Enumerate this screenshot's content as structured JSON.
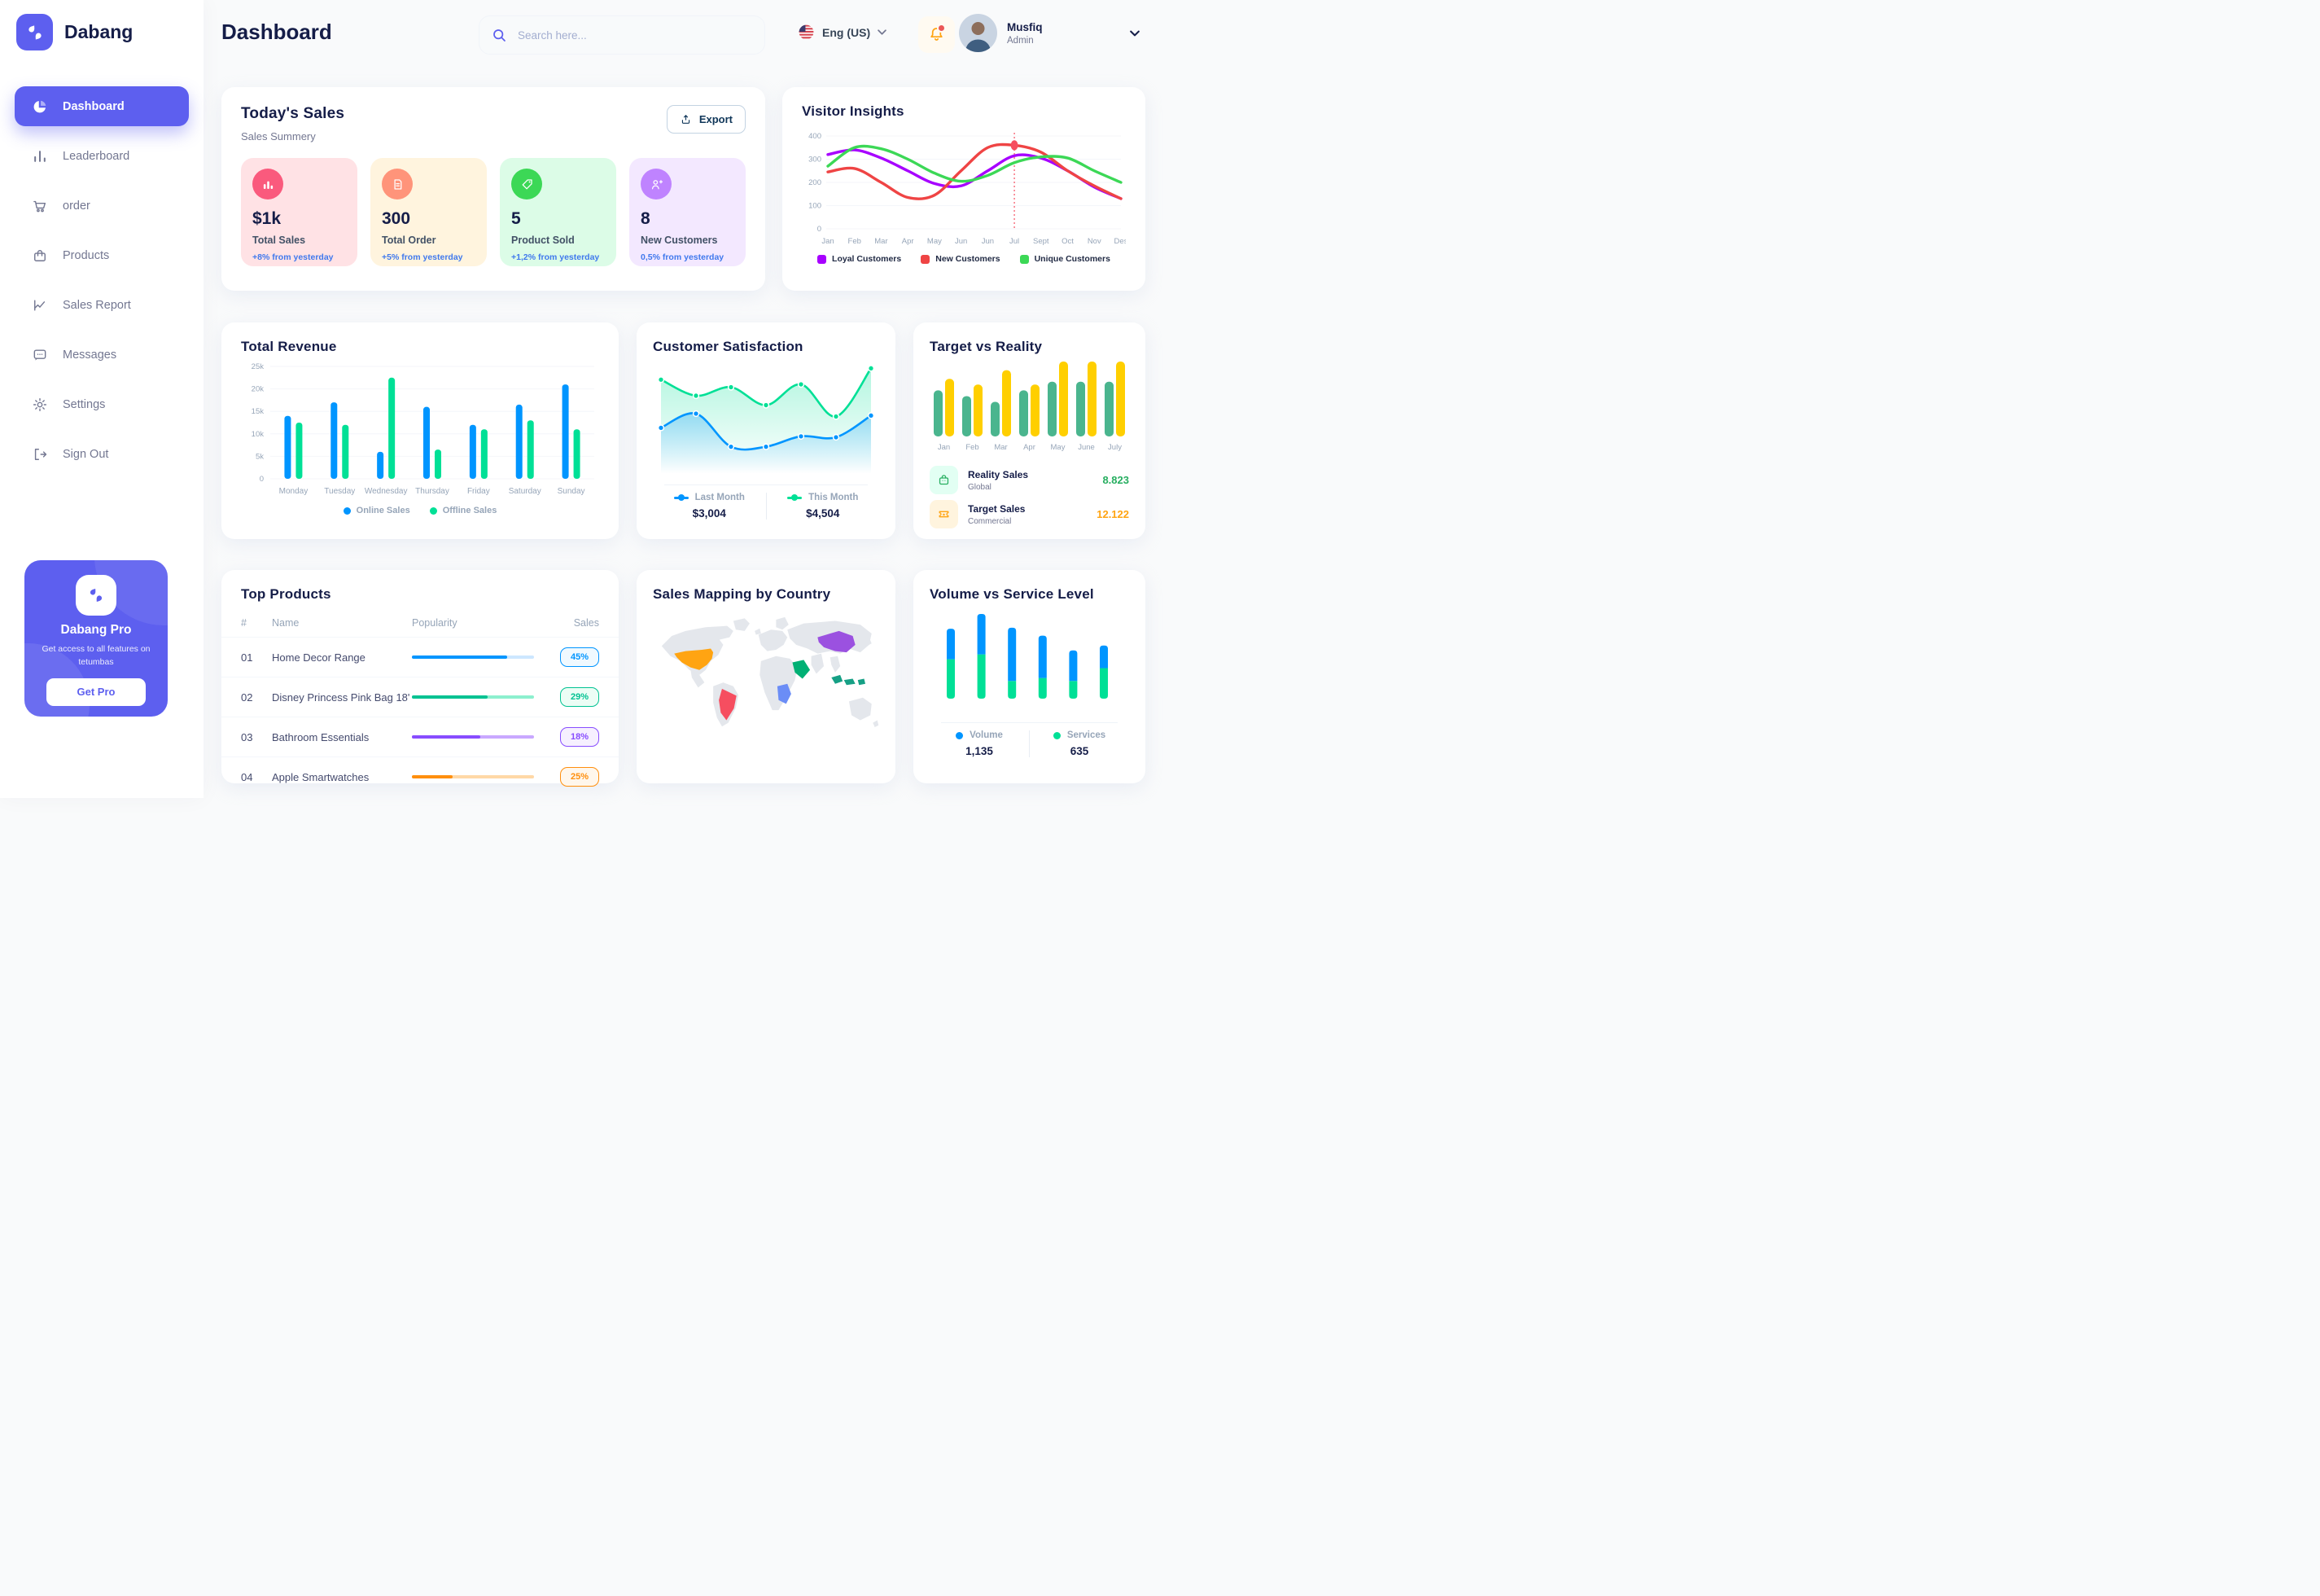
{
  "brand": {
    "name": "Dabang",
    "accent": "#5D5FEF"
  },
  "page": {
    "title": "Dashboard"
  },
  "header": {
    "search": {
      "placeholder": "Search here..."
    },
    "language": {
      "label": "Eng (US)"
    },
    "user": {
      "name": "Musfiq",
      "role": "Admin"
    }
  },
  "sidebar": {
    "items": [
      {
        "label": "Dashboard",
        "icon": "pie-chart-icon",
        "active": true
      },
      {
        "label": "Leaderboard",
        "icon": "bar-chart-icon",
        "active": false
      },
      {
        "label": "order",
        "icon": "cart-icon",
        "active": false
      },
      {
        "label": "Products",
        "icon": "bag-icon",
        "active": false
      },
      {
        "label": "Sales Report",
        "icon": "line-chart-icon",
        "active": false
      },
      {
        "label": "Messages",
        "icon": "message-icon",
        "active": false
      },
      {
        "label": "Settings",
        "icon": "gear-icon",
        "active": false
      },
      {
        "label": "Sign Out",
        "icon": "sign-out-icon",
        "active": false
      }
    ],
    "pro_card": {
      "title": "Dabang Pro",
      "subtitle": "Get access to all features on tetumbas",
      "cta": "Get Pro"
    }
  },
  "today_sales": {
    "title": "Today's Sales",
    "subtitle": "Sales Summery",
    "export_label": "Export",
    "delta_color": "#4079ED",
    "cards": [
      {
        "value": "$1k",
        "label": "Total Sales",
        "delta": "+8% from yesterday",
        "bg": "#FFE2E5",
        "icon_bg": "#FA5A7D",
        "icon": "chart-bars-icon"
      },
      {
        "value": "300",
        "label": "Total Order",
        "delta": "+5% from yesterday",
        "bg": "#FFF4DE",
        "icon_bg": "#FF947A",
        "icon": "order-doc-icon"
      },
      {
        "value": "5",
        "label": "Product Sold",
        "delta": "+1,2% from yesterday",
        "bg": "#DCFCE7",
        "icon_bg": "#3CD856",
        "icon": "tag-icon"
      },
      {
        "value": "8",
        "label": "New Customers",
        "delta": "0,5% from yesterday",
        "bg": "#F3E8FF",
        "icon_bg": "#BF83FF",
        "icon": "new-customer-icon"
      }
    ]
  },
  "chart_data": [
    {
      "id": "visitor_insights",
      "type": "line",
      "title": "Visitor Insights",
      "x": [
        "Jan",
        "Feb",
        "Mar",
        "Apr",
        "May",
        "Jun",
        "Jun",
        "Jul",
        "Sept",
        "Oct",
        "Nov",
        "Des"
      ],
      "ylim": [
        0,
        400
      ],
      "yticks": [
        "400",
        "300",
        "200",
        "100",
        "0"
      ],
      "grid": true,
      "legend_position": "bottom",
      "series": [
        {
          "name": "Loyal Customers",
          "color": "#A700FF",
          "values": [
            320,
            340,
            305,
            250,
            195,
            185,
            250,
            315,
            305,
            250,
            180,
            130
          ]
        },
        {
          "name": "New Customers",
          "color": "#EF4444",
          "values": [
            245,
            260,
            200,
            135,
            145,
            250,
            350,
            360,
            330,
            250,
            185,
            130
          ]
        },
        {
          "name": "Unique Customers",
          "color": "#3CD856",
          "values": [
            270,
            350,
            345,
            300,
            240,
            205,
            230,
            285,
            310,
            305,
            250,
            200
          ]
        }
      ],
      "marker": {
        "series": "New Customers",
        "x_index": 7,
        "x_label": "Jul",
        "color": "#F64E60"
      }
    },
    {
      "id": "total_revenue",
      "type": "bar",
      "title": "Total Revenue",
      "categories": [
        "Monday",
        "Tuesday",
        "Wednesday",
        "Thursday",
        "Friday",
        "Saturday",
        "Sunday"
      ],
      "ylabel_unit": "k",
      "ylim": [
        0,
        25
      ],
      "yticks": [
        "25k",
        "20k",
        "15k",
        "10k",
        "5k",
        "0"
      ],
      "grid": true,
      "legend_position": "bottom",
      "series": [
        {
          "name": "Online Sales",
          "color": "#0095FF",
          "values": [
            14,
            17,
            6,
            16,
            12,
            16.5,
            21
          ]
        },
        {
          "name": "Offline Sales",
          "color": "#00E096",
          "values": [
            12.5,
            12,
            22.5,
            6.5,
            11,
            13,
            11
          ]
        }
      ]
    },
    {
      "id": "customer_satisfaction",
      "type": "area",
      "title": "Customer Satisfaction",
      "ylim": [
        0,
        100
      ],
      "grid": false,
      "legend_position": "bottom",
      "series": [
        {
          "name": "Last Month",
          "color": "#0095FF",
          "total": "$3,004",
          "values": [
            35,
            50,
            15,
            15,
            26,
            25,
            48
          ]
        },
        {
          "name": "This Month",
          "color": "#00E096",
          "total": "$4,504",
          "values": [
            86,
            69,
            78,
            59,
            81,
            47,
            98
          ]
        }
      ]
    },
    {
      "id": "target_vs_reality",
      "type": "bar",
      "title": "Target vs Reality",
      "categories": [
        "Jan",
        "Feb",
        "Mar",
        "Apr",
        "May",
        "June",
        "July"
      ],
      "ylim": [
        0,
        13
      ],
      "grid": false,
      "legend_position": "bottom",
      "series": [
        {
          "name": "Reality Sales",
          "color": "#4AB58E",
          "values": [
            8,
            7,
            6,
            8,
            9.5,
            9.5,
            9.5
          ]
        },
        {
          "name": "Target Sales",
          "color": "#FFCF00",
          "values": [
            10,
            9,
            11.5,
            9,
            13,
            13,
            13
          ]
        }
      ],
      "summary": [
        {
          "label": "Reality Sales",
          "sublabel": "Global",
          "value": "8.823",
          "value_color": "#27AE60",
          "icon": "shopping-bag-icon",
          "icon_bg": "#E2FFF3",
          "icon_color": "#27AE60"
        },
        {
          "label": "Target Sales",
          "sublabel": "Commercial",
          "value": "12.122",
          "value_color": "#FFA412",
          "icon": "ticket-icon",
          "icon_bg": "#FFF4DE",
          "icon_color": "#FFA412"
        }
      ]
    },
    {
      "id": "volume_vs_service",
      "type": "stacked-bar",
      "title": "Volume vs Service Level",
      "ylim": [
        0,
        100
      ],
      "grid": false,
      "legend_position": "bottom",
      "series": [
        {
          "name": "Volume",
          "color": "#0095FF",
          "total": "1,135",
          "values": [
            31,
            41,
            54,
            43,
            31,
            23
          ]
        },
        {
          "name": "Services",
          "color": "#00E096",
          "total": "635",
          "values": [
            40,
            45,
            18,
            21,
            18,
            31
          ]
        }
      ]
    }
  ],
  "top_products": {
    "title": "Top Products",
    "columns": [
      "#",
      "Name",
      "Popularity",
      "Sales"
    ],
    "rows": [
      {
        "num": "01",
        "name": "Home Decor Range",
        "popularity": 78,
        "sales": "45%",
        "accent": "#0095FF",
        "track": "#CDE7FF",
        "badge_bg": "#F0F9FF"
      },
      {
        "num": "02",
        "name": "Disney Princess Pink Bag 18'",
        "popularity": 62,
        "sales": "29%",
        "accent": "#00C292",
        "track": "#8DF0CE",
        "badge_bg": "#ECFDF5"
      },
      {
        "num": "03",
        "name": "Bathroom Essentials",
        "popularity": 56,
        "sales": "18%",
        "accent": "#884DFF",
        "track": "#C9A8FF",
        "badge_bg": "#F6F0FF"
      },
      {
        "num": "04",
        "name": "Apple Smartwatches",
        "popularity": 33,
        "sales": "25%",
        "accent": "#FF8F0D",
        "track": "#FFD8A6",
        "badge_bg": "#FFF7EC"
      }
    ]
  },
  "sales_map": {
    "title": "Sales Mapping by Country",
    "countries": [
      {
        "name": "United States",
        "color": "#FFA412"
      },
      {
        "name": "Brazil",
        "color": "#F64E60"
      },
      {
        "name": "Saudi Arabia",
        "color": "#00B074"
      },
      {
        "name": "DR Congo",
        "color": "#6B8DF6"
      },
      {
        "name": "China",
        "color": "#9B51E0"
      },
      {
        "name": "Indonesia",
        "color": "#16A085"
      }
    ]
  }
}
